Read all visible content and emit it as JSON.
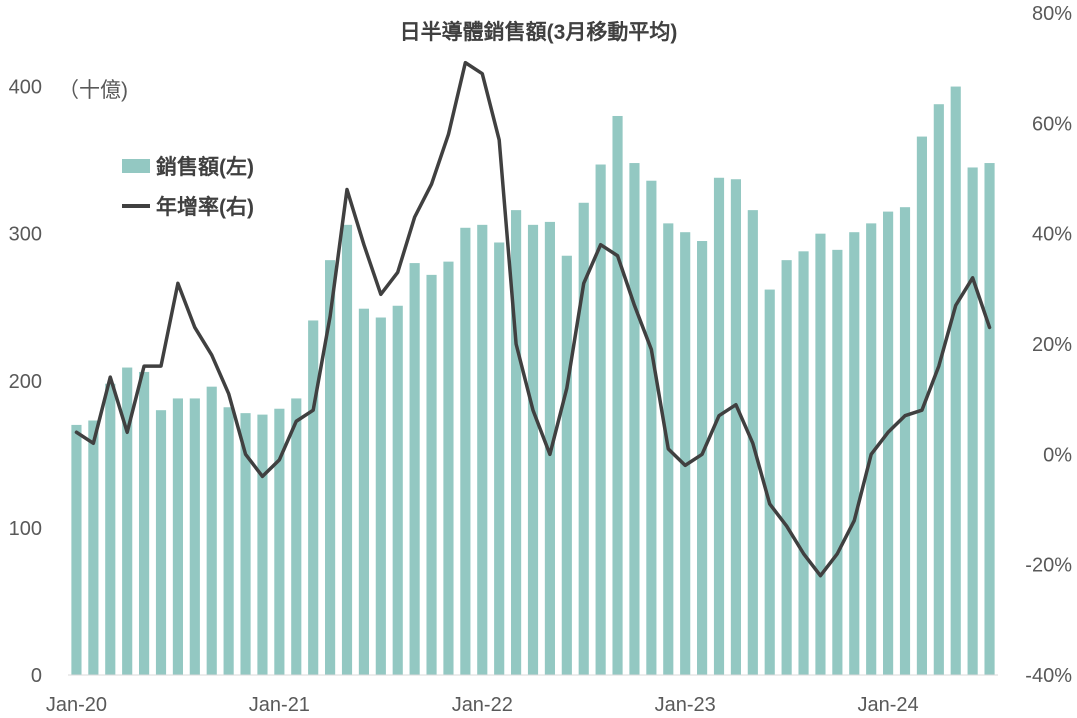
{
  "chart_data": {
    "type": "bar",
    "title": "日半導體銷售額(3月移動平均)",
    "unit_label": "（十億)",
    "colors": {
      "bar": "#93c8c2",
      "line": "#404040"
    },
    "legend": {
      "bar_label": "銷售額(左)",
      "line_label": "年增率(右)",
      "placement": "upper-left"
    },
    "x_tick_labels": [
      "Jan-20",
      "Jan-21",
      "Jan-22",
      "Jan-23",
      "Jan-24"
    ],
    "x_tick_months": [
      "2020-01",
      "2021-01",
      "2022-01",
      "2023-01",
      "2024-01"
    ],
    "y_left": {
      "ylim": [
        0,
        450
      ],
      "ticks": [
        0,
        100,
        200,
        300,
        400
      ],
      "tick_labels": [
        "0",
        "100",
        "200",
        "300",
        "400"
      ]
    },
    "y_right": {
      "ylim": [
        -40,
        80
      ],
      "ticks": [
        -40,
        -20,
        0,
        20,
        40,
        60,
        80
      ],
      "tick_labels": [
        "-40%",
        "-20%",
        "0%",
        "20%",
        "40%",
        "60%",
        "80%"
      ]
    },
    "grid": false,
    "x": [
      "2020-01",
      "2020-02",
      "2020-03",
      "2020-04",
      "2020-05",
      "2020-06",
      "2020-07",
      "2020-08",
      "2020-09",
      "2020-10",
      "2020-11",
      "2020-12",
      "2021-01",
      "2021-02",
      "2021-03",
      "2021-04",
      "2021-05",
      "2021-06",
      "2021-07",
      "2021-08",
      "2021-09",
      "2021-10",
      "2021-11",
      "2021-12",
      "2022-01",
      "2022-02",
      "2022-03",
      "2022-04",
      "2022-05",
      "2022-06",
      "2022-07",
      "2022-08",
      "2022-09",
      "2022-10",
      "2022-11",
      "2022-12",
      "2023-01",
      "2023-02",
      "2023-03",
      "2023-04",
      "2023-05",
      "2023-06",
      "2023-07",
      "2023-08",
      "2023-09",
      "2023-10",
      "2023-11",
      "2023-12",
      "2024-01",
      "2024-02",
      "2024-03",
      "2024-04",
      "2024-05",
      "2024-06",
      "2024-07"
    ],
    "series": [
      {
        "name": "銷售額(左)",
        "type": "bar",
        "axis": "left",
        "values": [
          170,
          173,
          198,
          209,
          206,
          180,
          188,
          188,
          196,
          182,
          178,
          177,
          181,
          188,
          241,
          282,
          306,
          249,
          243,
          251,
          280,
          272,
          281,
          304,
          306,
          294,
          316,
          306,
          308,
          285,
          321,
          347,
          380,
          348,
          336,
          307,
          301,
          295,
          338,
          337,
          316,
          262,
          282,
          288,
          300,
          289,
          301,
          307,
          315,
          318,
          366,
          388,
          400,
          345,
          348
        ]
      },
      {
        "name": "年增率(右)",
        "type": "line",
        "axis": "right",
        "values": [
          4,
          2,
          14,
          4,
          16,
          16,
          31,
          23,
          18,
          11,
          0,
          -4,
          -1,
          6,
          8,
          25,
          48,
          38,
          29,
          33,
          43,
          49,
          58,
          71,
          69,
          57,
          20,
          8,
          0,
          12,
          31,
          38,
          36,
          27,
          19,
          1,
          -2,
          0,
          7,
          9,
          2,
          -9,
          -13,
          -18,
          -22,
          -18,
          -12,
          0,
          4,
          7,
          8,
          16,
          27,
          32,
          23
        ]
      }
    ]
  }
}
